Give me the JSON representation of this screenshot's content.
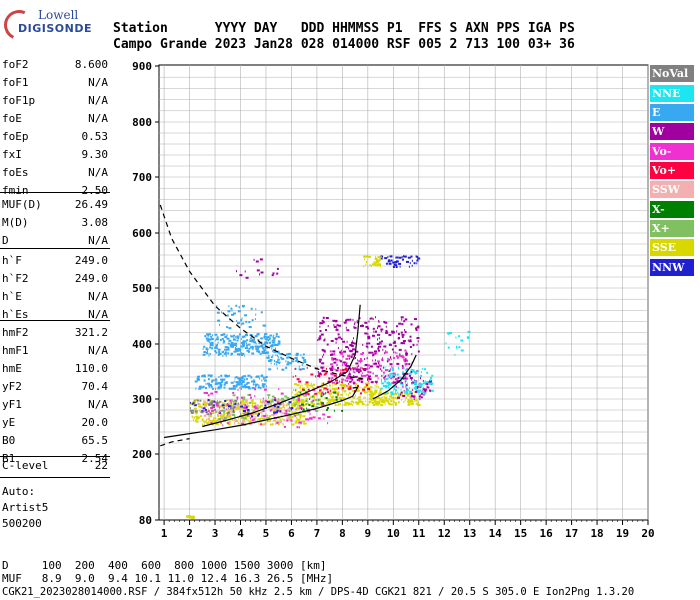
{
  "logo": {
    "line1": "Lowell",
    "line2": "DIGISONDE"
  },
  "header": {
    "row1": "Station      YYYY DAY   DDD HHMMSS P1  FFS S AXN PPS IGA PS",
    "row2": "Campo Grande 2023 Jan28 028 014000 RSF 005 2 713 100 03+ 36"
  },
  "params": [
    {
      "k": "foF2",
      "v": "8.600"
    },
    {
      "k": "foF1",
      "v": "N/A"
    },
    {
      "k": "foF1p",
      "v": "N/A"
    },
    {
      "k": "foE",
      "v": "N/A"
    },
    {
      "k": "foEp",
      "v": "0.53"
    },
    {
      "k": "fxI",
      "v": "9.30"
    },
    {
      "k": "foEs",
      "v": "N/A"
    },
    {
      "k": "fmin",
      "v": "2.50"
    },
    {
      "k": "MUF(D)",
      "v": "26.49"
    },
    {
      "k": "M(D)",
      "v": "3.08"
    },
    {
      "k": "D",
      "v": "N/A"
    },
    {
      "k": "h`F",
      "v": "249.0"
    },
    {
      "k": "h`F2",
      "v": "249.0"
    },
    {
      "k": "h`E",
      "v": "N/A"
    },
    {
      "k": "h`Es",
      "v": "N/A"
    },
    {
      "k": "hmF2",
      "v": "321.2"
    },
    {
      "k": "hmF1",
      "v": "N/A"
    },
    {
      "k": "hmE",
      "v": "110.0"
    },
    {
      "k": "yF2",
      "v": "70.4"
    },
    {
      "k": "yF1",
      "v": "N/A"
    },
    {
      "k": "yE",
      "v": "20.0"
    },
    {
      "k": "B0",
      "v": "65.5"
    },
    {
      "k": "B1",
      "v": "2.54"
    },
    {
      "k": "C-level",
      "v": "22"
    }
  ],
  "autoscaling": {
    "line1": "Auto:",
    "line2": "Artist5",
    "line3": "500200"
  },
  "footer": {
    "d_row": "D     100  200  400  600  800 1000 1500 3000 [km]",
    "muf_row": "MUF   8.9  9.0  9.4 10.1 11.0 12.4 16.3 26.5 [MHz]",
    "info_row": "CGK21_2023028014000.RSF / 384fx512h 50 kHz 2.5 km / DPS-4D CGK21 821 / 20.5 S 305.0 E Ion2Png 1.3.20"
  },
  "colors": {
    "legend": [
      "#808080",
      "#1ee6f0",
      "#38a8f0",
      "#a000a0",
      "#f030d0",
      "#ff0040",
      "#f4b0b0",
      "#008000",
      "#80c060",
      "#d8d800",
      "#2020d0"
    ],
    "grid": "#b0b0b0"
  },
  "legend": [
    "NoVal",
    "NNE",
    "E",
    "W",
    "Vo-",
    "Vo+",
    "SSW",
    "X-",
    "X+",
    "SSE",
    "NNW"
  ],
  "chart_data": {
    "type": "scatter",
    "title": "",
    "xlabel": "",
    "ylabel": "",
    "xlim": [
      0.8,
      20
    ],
    "ylim": [
      80,
      900
    ],
    "x_ticks": [
      1,
      2,
      3,
      4,
      5,
      6,
      7,
      8,
      9,
      10,
      11,
      12,
      13,
      14,
      15,
      16,
      17,
      18,
      19,
      20
    ],
    "y_ticks": [
      80,
      200,
      300,
      400,
      500,
      600,
      700,
      800,
      900
    ],
    "grid": true,
    "legend_position": "right",
    "clusters": [
      {
        "name": "E",
        "x": [
          2.5,
          5.5
        ],
        "y": [
          380,
          420
        ],
        "n": 260
      },
      {
        "name": "E",
        "x": [
          2.2,
          5.0
        ],
        "y": [
          320,
          345
        ],
        "n": 160
      },
      {
        "name": "E",
        "x": [
          5.0,
          6.5
        ],
        "y": [
          355,
          385
        ],
        "n": 60
      },
      {
        "name": "E",
        "x": [
          3.0,
          5.0
        ],
        "y": [
          430,
          470
        ],
        "n": 40
      },
      {
        "name": "SSE",
        "x": [
          2.0,
          6.5
        ],
        "y": [
          255,
          300
        ],
        "n": 330
      },
      {
        "name": "SSE",
        "x": [
          6.0,
          9.5
        ],
        "y": [
          290,
          330
        ],
        "n": 240
      },
      {
        "name": "SSE",
        "x": [
          9.0,
          11.0
        ],
        "y": [
          290,
          315
        ],
        "n": 120
      },
      {
        "name": "SSW",
        "x": [
          2.5,
          6.0
        ],
        "y": [
          255,
          300
        ],
        "n": 140
      },
      {
        "name": "X+",
        "x": [
          3.0,
          7.0
        ],
        "y": [
          265,
          310
        ],
        "n": 90
      },
      {
        "name": "Vo-",
        "x": [
          2.5,
          7.5
        ],
        "y": [
          250,
          320
        ],
        "n": 110
      },
      {
        "name": "Vo-",
        "x": [
          7.5,
          10.5
        ],
        "y": [
          330,
          390
        ],
        "n": 140
      },
      {
        "name": "Vo+",
        "x": [
          6.0,
          9.0
        ],
        "y": [
          310,
          360
        ],
        "n": 70
      },
      {
        "name": "W",
        "x": [
          7.0,
          11.0
        ],
        "y": [
          330,
          450
        ],
        "n": 300
      },
      {
        "name": "W",
        "x": [
          10.0,
          11.5
        ],
        "y": [
          300,
          340
        ],
        "n": 60
      },
      {
        "name": "NNE",
        "x": [
          9.5,
          11.5
        ],
        "y": [
          310,
          360
        ],
        "n": 110
      },
      {
        "name": "NNE",
        "x": [
          12.0,
          13.0
        ],
        "y": [
          380,
          430
        ],
        "n": 16
      },
      {
        "name": "NNW",
        "x": [
          9.5,
          11.0
        ],
        "y": [
          540,
          560
        ],
        "n": 40
      },
      {
        "name": "NNW",
        "x": [
          2.0,
          6.0
        ],
        "y": [
          270,
          300
        ],
        "n": 50
      },
      {
        "name": "SSE",
        "x": [
          8.8,
          9.5
        ],
        "y": [
          540,
          560
        ],
        "n": 30
      },
      {
        "name": "X-",
        "x": [
          6.0,
          8.0
        ],
        "y": [
          280,
          320
        ],
        "n": 30
      },
      {
        "name": "NoVal",
        "x": [
          2.0,
          4.0
        ],
        "y": [
          270,
          300
        ],
        "n": 40
      },
      {
        "name": "W",
        "x": [
          3.8,
          5.5
        ],
        "y": [
          520,
          555
        ],
        "n": 14
      },
      {
        "name": "SSE",
        "x": [
          1.85,
          2.15
        ],
        "y": [
          85,
          89
        ],
        "n": 14
      }
    ],
    "traces": [
      {
        "name": "profile",
        "style": "solid",
        "points": [
          [
            1,
            230
          ],
          [
            2,
            237
          ],
          [
            3,
            244
          ],
          [
            4,
            252
          ],
          [
            5,
            262
          ],
          [
            6,
            272
          ],
          [
            7,
            283
          ],
          [
            7.5,
            290
          ],
          [
            8.0,
            297
          ],
          [
            8.4,
            305
          ],
          [
            8.6,
            321
          ],
          [
            8.4,
            320
          ]
        ]
      },
      {
        "name": "virtual_height_ox",
        "style": "solid",
        "points": [
          [
            2.5,
            250
          ],
          [
            3.5,
            262
          ],
          [
            4.5,
            275
          ],
          [
            5.5,
            292
          ],
          [
            6.5,
            310
          ],
          [
            7.5,
            330
          ],
          [
            8.2,
            350
          ],
          [
            8.5,
            380
          ],
          [
            8.6,
            420
          ],
          [
            8.7,
            470
          ]
        ]
      },
      {
        "name": "virtual_height_x",
        "style": "solid",
        "points": [
          [
            9.2,
            300
          ],
          [
            9.8,
            315
          ],
          [
            10.3,
            335
          ],
          [
            10.7,
            360
          ],
          [
            10.9,
            380
          ]
        ]
      },
      {
        "name": "muf_curve",
        "style": "dashed",
        "points": [
          [
            0.85,
            650
          ],
          [
            1.3,
            590
          ],
          [
            2,
            530
          ],
          [
            3,
            468
          ],
          [
            4,
            428
          ],
          [
            5,
            396
          ],
          [
            6,
            374
          ],
          [
            7,
            355
          ],
          [
            8,
            343
          ],
          [
            9,
            335
          ]
        ]
      },
      {
        "name": "lower_dashed",
        "style": "dashed",
        "points": [
          [
            0.85,
            215
          ],
          [
            1.3,
            222
          ],
          [
            2,
            228
          ]
        ]
      }
    ]
  }
}
